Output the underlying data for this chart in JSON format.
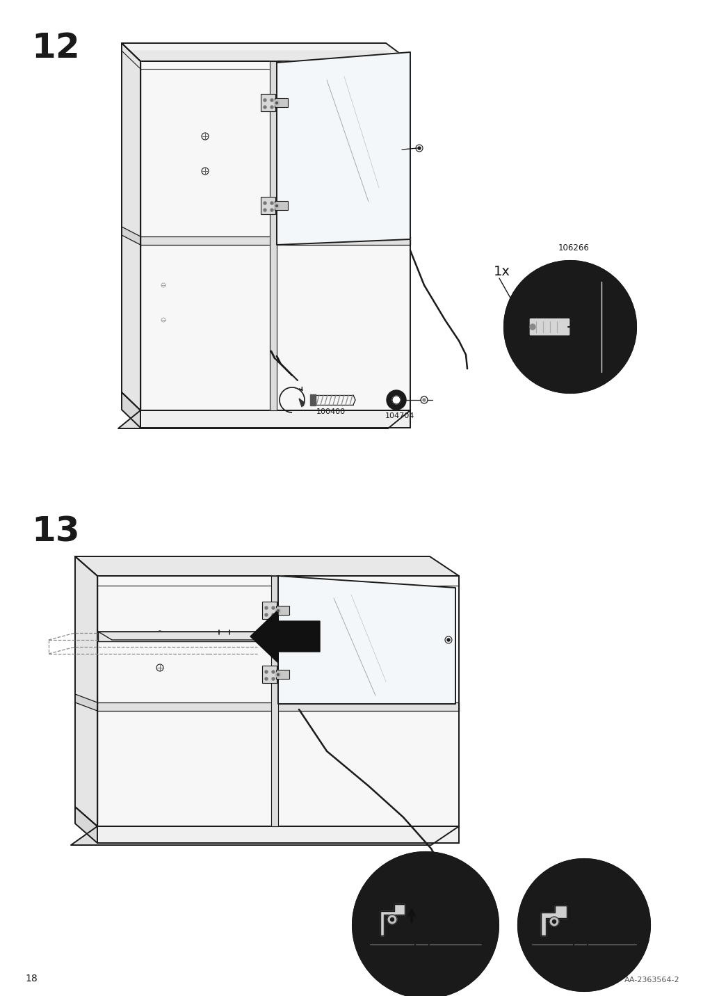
{
  "page_number": "18",
  "doc_id": "AA-2363564-2",
  "step12_number": "12",
  "step13_number": "13",
  "part_codes": [
    "100400",
    "104704",
    "106266"
  ],
  "quantity_label": "1x",
  "bg_color": "#ffffff",
  "lc": "#1a1a1a",
  "lc_gray": "#888888",
  "lc_lgray": "#cccccc",
  "lw_main": 1.4,
  "lw_thin": 0.8,
  "lw_thick": 2.0
}
